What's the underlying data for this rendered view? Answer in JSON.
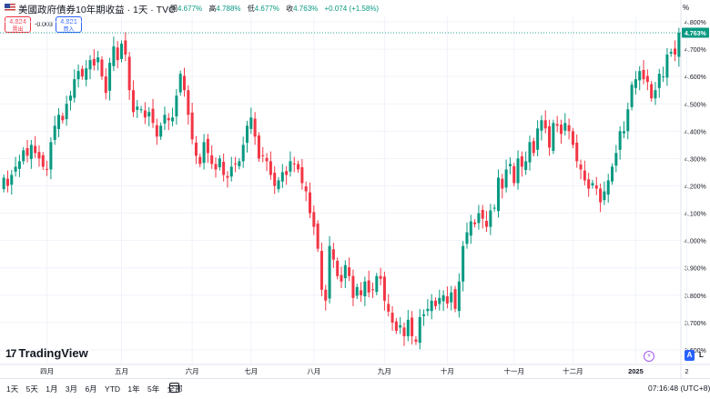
{
  "header": {
    "title": "美國政府債券10年期收益 · 1天 · TVC",
    "ohlc": [
      {
        "label": "開",
        "value": "4.677%"
      },
      {
        "label": "高",
        "value": "4.788%"
      },
      {
        "label": "低",
        "value": "4.677%"
      },
      {
        "label": "收",
        "value": "4.763%"
      }
    ],
    "change": "+0.074 (+1.58%)",
    "percent_button": "%",
    "sell_value": "4.824",
    "sell_label": "賣出",
    "spread": "-0.003",
    "buy_value": "4.821",
    "buy_label": "買入"
  },
  "colors": {
    "up": "#089981",
    "down": "#f23645",
    "accent": "#2962ff",
    "grid": "#f0f3fa"
  },
  "brand": "TradingView",
  "toolbar": {
    "ranges": [
      "1天",
      "5天",
      "1月",
      "3月",
      "6月",
      "YTD",
      "1年",
      "5年",
      "全部"
    ],
    "calendar_icon": "calendar-icon",
    "time": "07:16:48 (UTC+8)",
    "auto_button": "A",
    "log_button": "L"
  },
  "chart_data": {
    "type": "candlestick",
    "title": "美國政府債券10年期收益",
    "y_axis": {
      "min": 3.55,
      "max": 4.82,
      "ticks": [
        "4.800%",
        "4.700%",
        "4.600%",
        "4.500%",
        "4.400%",
        "4.300%",
        "4.200%",
        "4.100%",
        "4.000%",
        "3.900%",
        "3.800%",
        "3.700%",
        "3.600%"
      ],
      "last_price_label": "4.763%"
    },
    "x_axis": {
      "labels": [
        "四月",
        "五月",
        "六月",
        "七月",
        "八月",
        "九月",
        "十月",
        "十一月",
        "十二月",
        "2025",
        "2"
      ],
      "label_index": [
        11,
        30,
        48,
        63,
        79,
        97,
        113,
        130,
        145,
        161,
        174
      ]
    },
    "close_series": [
      4.23,
      4.2,
      4.24,
      4.27,
      4.29,
      4.33,
      4.31,
      4.35,
      4.32,
      4.3,
      4.27,
      4.26,
      4.36,
      4.42,
      4.46,
      4.44,
      4.5,
      4.53,
      4.59,
      4.62,
      4.6,
      4.63,
      4.66,
      4.64,
      4.67,
      4.6,
      4.54,
      4.65,
      4.71,
      4.66,
      4.72,
      4.68,
      4.55,
      4.47,
      4.49,
      4.48,
      4.45,
      4.47,
      4.43,
      4.38,
      4.42,
      4.46,
      4.44,
      4.45,
      4.53,
      4.61,
      4.55,
      4.46,
      4.37,
      4.31,
      4.28,
      4.36,
      4.32,
      4.28,
      4.26,
      4.3,
      4.24,
      4.23,
      4.27,
      4.28,
      4.29,
      4.35,
      4.42,
      4.45,
      4.38,
      4.3,
      4.31,
      4.29,
      4.24,
      4.2,
      4.22,
      4.25,
      4.24,
      4.29,
      4.28,
      4.26,
      4.21,
      4.18,
      4.1,
      4.05,
      3.97,
      3.82,
      3.78,
      3.98,
      3.93,
      3.87,
      3.85,
      3.91,
      3.87,
      3.79,
      3.83,
      3.8,
      3.85,
      3.81,
      3.82,
      3.87,
      3.86,
      3.78,
      3.74,
      3.7,
      3.67,
      3.69,
      3.65,
      3.71,
      3.65,
      3.63,
      3.72,
      3.73,
      3.75,
      3.78,
      3.76,
      3.79,
      3.8,
      3.77,
      3.81,
      3.75,
      3.85,
      3.98,
      4.03,
      4.07,
      4.06,
      4.1,
      4.08,
      4.05,
      4.11,
      4.12,
      4.23,
      4.19,
      4.26,
      4.28,
      4.21,
      4.3,
      4.27,
      4.29,
      4.36,
      4.32,
      4.41,
      4.44,
      4.41,
      4.34,
      4.43,
      4.42,
      4.39,
      4.43,
      4.4,
      4.35,
      4.29,
      4.26,
      4.22,
      4.19,
      4.21,
      4.19,
      4.14,
      4.18,
      4.22,
      4.27,
      4.32,
      4.4,
      4.4,
      4.48,
      4.57,
      4.59,
      4.62,
      4.59,
      4.58,
      4.52,
      4.55,
      4.61,
      4.6,
      4.68,
      4.69,
      4.68,
      4.76
    ]
  }
}
